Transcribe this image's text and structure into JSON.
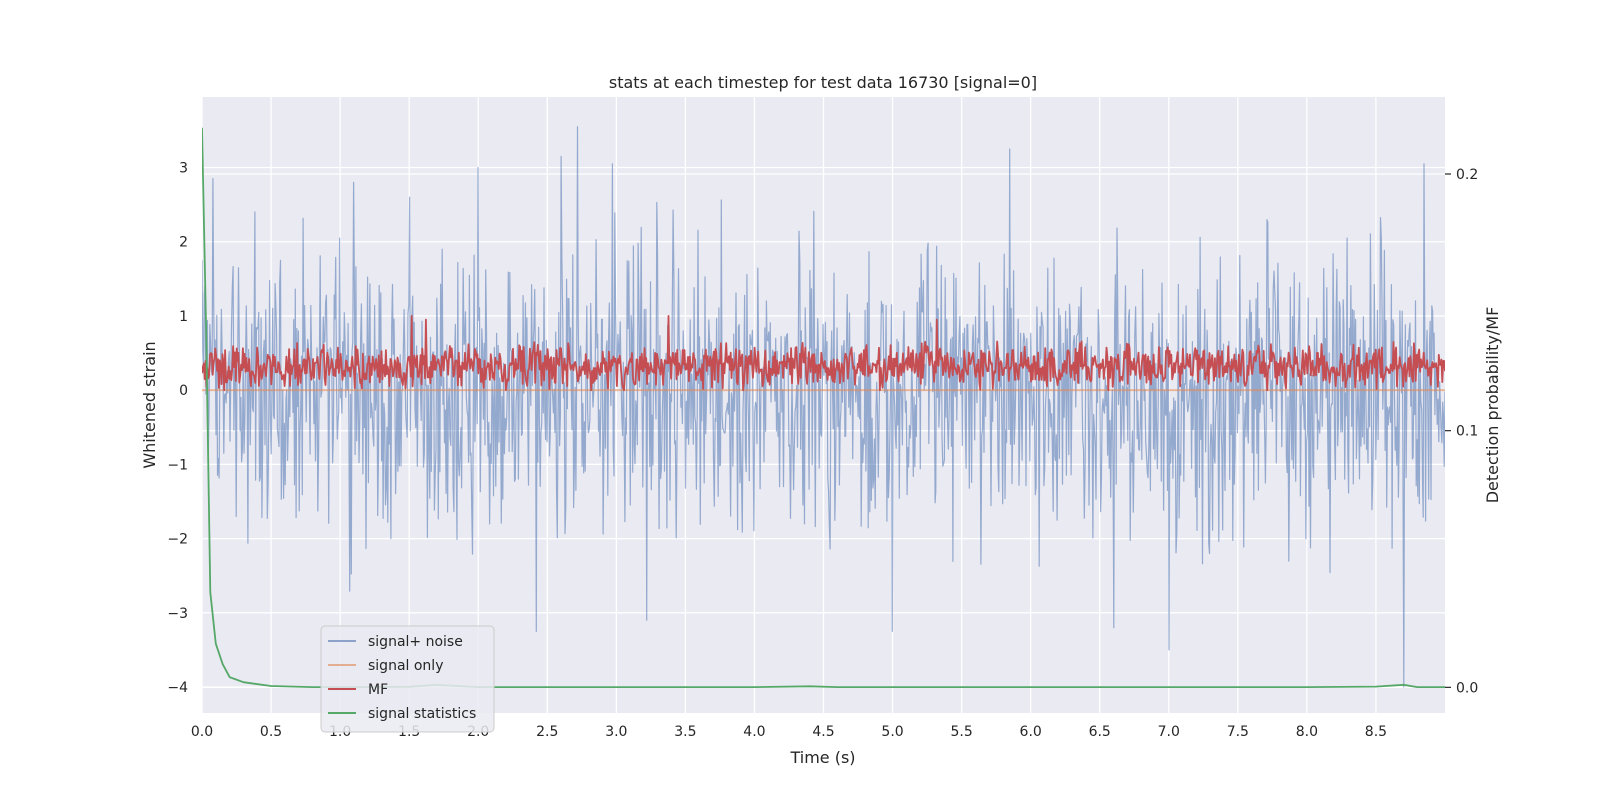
{
  "chart_data": {
    "type": "line",
    "title": "stats at each timestep for test data 16730 [signal=0]",
    "xlabel": "Time (s)",
    "ylabel": "Whitened strain",
    "y2label": "Detection probability/MF",
    "xlim": [
      0.0,
      9.0
    ],
    "ylim": [
      -4.35,
      3.95
    ],
    "y2lim": [
      -0.01,
      0.23
    ],
    "xticks": [
      0.0,
      0.5,
      1.0,
      1.5,
      2.0,
      2.5,
      3.0,
      3.5,
      4.0,
      4.5,
      5.0,
      5.5,
      6.0,
      6.5,
      7.0,
      7.5,
      8.0,
      8.5
    ],
    "xtick_labels": [
      "0.0",
      "0.5",
      "1.0",
      "1.5",
      "2.0",
      "2.5",
      "3.0",
      "3.5",
      "4.0",
      "4.5",
      "5.0",
      "5.5",
      "6.0",
      "6.5",
      "7.0",
      "7.5",
      "8.0",
      "8.5"
    ],
    "yticks": [
      3,
      2,
      1,
      0,
      -1,
      -2,
      -3,
      -4
    ],
    "ytick_labels": [
      "3",
      "2",
      "1",
      "0",
      "−1",
      "−2",
      "−3",
      "−4"
    ],
    "y2ticks": [
      0.2,
      0.1,
      0.0
    ],
    "y2tick_labels": [
      "0.2",
      "0.1",
      "0.0"
    ],
    "legend_position": "lower-left",
    "series": [
      {
        "name": "signal+ noise",
        "color": "#4c72b0",
        "axis": "left",
        "kind": "noise",
        "amplitude": 1.3,
        "x_range": [
          0.0,
          9.0
        ],
        "spikes": [
          [
            0.08,
            2.85
          ],
          [
            0.38,
            2.4
          ],
          [
            1.1,
            2.8
          ],
          [
            1.5,
            2.6
          ],
          [
            2.0,
            3.0
          ],
          [
            2.42,
            -3.25
          ],
          [
            2.6,
            3.15
          ],
          [
            2.72,
            3.55
          ],
          [
            2.97,
            3.05
          ],
          [
            3.22,
            -3.1
          ],
          [
            5.0,
            -3.25
          ],
          [
            5.85,
            3.25
          ],
          [
            6.6,
            -3.2
          ],
          [
            7.0,
            -3.5
          ],
          [
            8.7,
            -4.0
          ],
          [
            8.85,
            3.05
          ]
        ]
      },
      {
        "name": "signal only",
        "color": "#dd8452",
        "axis": "left",
        "kind": "flat",
        "value": 0.0
      },
      {
        "name": "MF",
        "color": "#c44e52",
        "axis": "left",
        "kind": "mf",
        "base": 0.32,
        "amplitude": 0.35,
        "spikes": [
          [
            1.52,
            1.0
          ],
          [
            1.62,
            0.95
          ],
          [
            3.38,
            1.0
          ],
          [
            5.32,
            0.95
          ]
        ]
      },
      {
        "name": "signal statistics",
        "color": "#55a868",
        "axis": "right",
        "kind": "points",
        "x": [
          0.0,
          0.03,
          0.06,
          0.1,
          0.15,
          0.2,
          0.3,
          0.5,
          0.8,
          1.2,
          1.5,
          1.7,
          2.0,
          3.0,
          4.0,
          4.4,
          4.6,
          5.0,
          6.0,
          7.0,
          8.0,
          8.5,
          8.7,
          8.8,
          9.0
        ],
        "y": [
          0.218,
          0.14,
          0.037,
          0.017,
          0.009,
          0.004,
          0.002,
          0.0005,
          0.0001,
          0.0001,
          0.0002,
          0.001,
          0.0001,
          0.0001,
          0.0001,
          0.0004,
          0.0001,
          0.0001,
          0.0001,
          0.0001,
          0.0001,
          0.0003,
          0.001,
          0.0001,
          0.0001
        ]
      }
    ]
  }
}
